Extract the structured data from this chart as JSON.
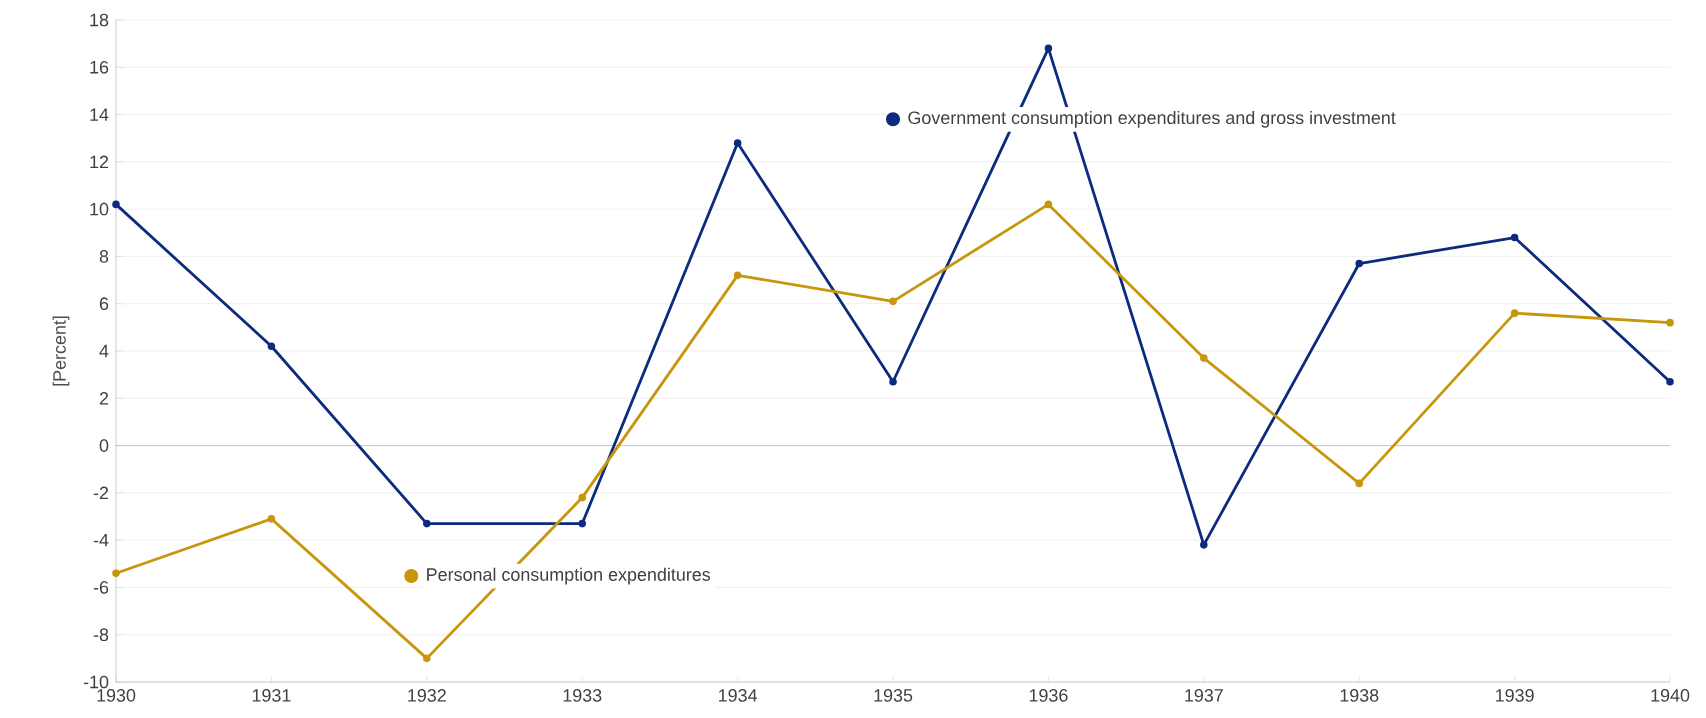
{
  "chart_data": {
    "type": "line",
    "ylabel": "[Percent]",
    "categories": [
      "1930",
      "1931",
      "1932",
      "1933",
      "1934",
      "1935",
      "1936",
      "1937",
      "1938",
      "1939",
      "1940"
    ],
    "series": [
      {
        "name": "Government consumption expenditures and gross investment",
        "color": "#0d2b7e",
        "values": [
          10.2,
          4.2,
          -3.3,
          -3.3,
          12.8,
          2.7,
          16.8,
          -4.2,
          7.7,
          8.8,
          2.7
        ]
      },
      {
        "name": "Personal consumption expenditures",
        "color": "#c8960c",
        "values": [
          -5.4,
          -3.1,
          -9.0,
          -2.2,
          7.2,
          6.1,
          10.2,
          3.7,
          -1.6,
          5.6,
          5.2
        ]
      }
    ],
    "ylim": [
      -10,
      18
    ],
    "yticks": [
      -10,
      -8,
      -6,
      -4,
      -2,
      0,
      2,
      4,
      6,
      8,
      10,
      12,
      14,
      16,
      18
    ],
    "grid": "y",
    "legend": "top",
    "marker": "circle",
    "line_style": "solid",
    "ref_lines": [
      {
        "axis": "y",
        "value": 0,
        "color": "#a9bfd6"
      }
    ]
  }
}
